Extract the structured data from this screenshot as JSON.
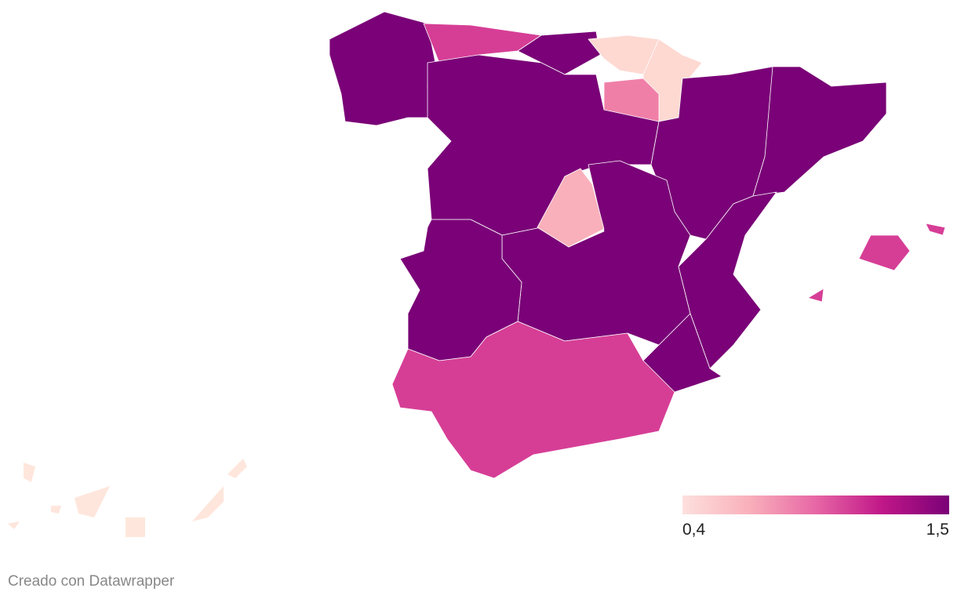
{
  "legend": {
    "min": {
      "value": 0.4,
      "label": "0,4"
    },
    "max": {
      "value": 1.5,
      "label": "1,5"
    },
    "colors": [
      "#fde0dd",
      "#f9b0bb",
      "#e767a5",
      "#c01788",
      "#7a0177"
    ]
  },
  "credit": "Creado con Datawrapper"
}
